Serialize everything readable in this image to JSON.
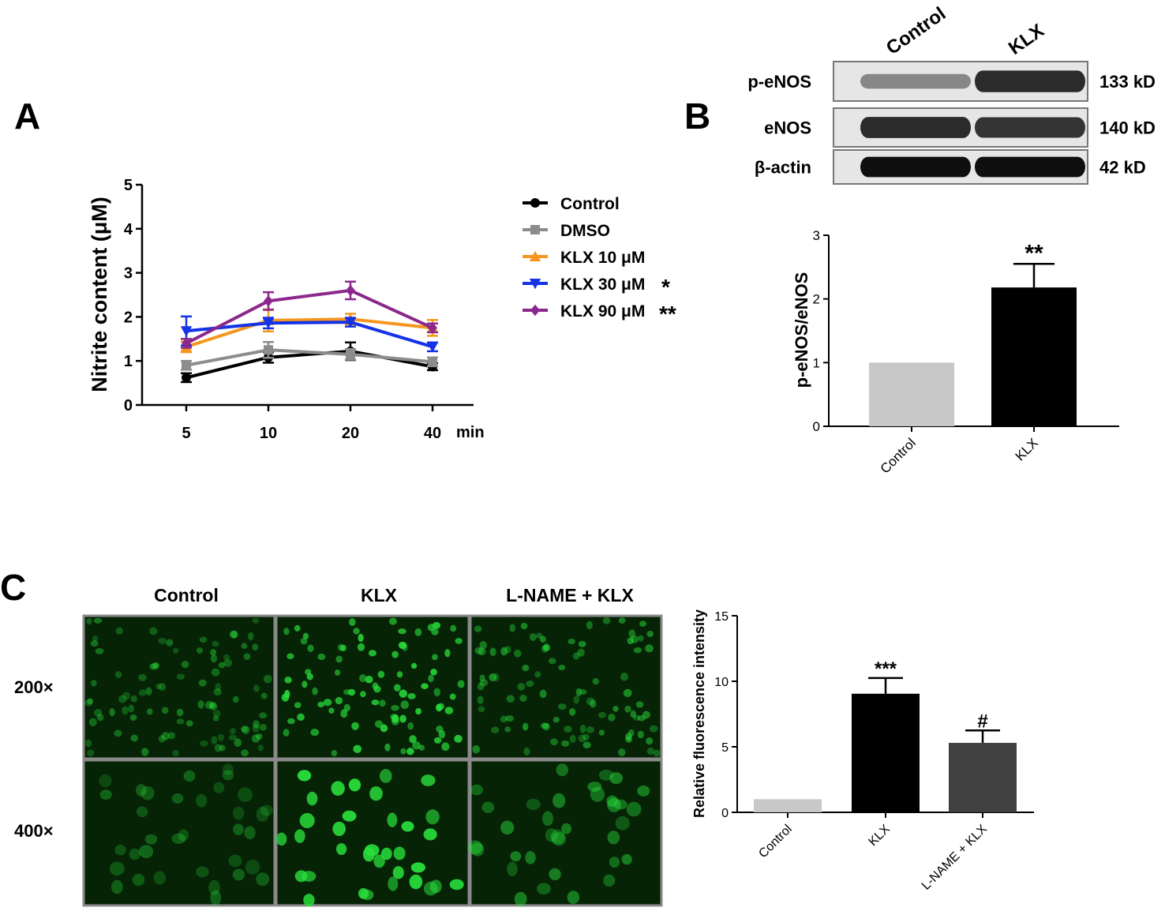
{
  "panels": {
    "a": "A",
    "b": "B",
    "c": "C"
  },
  "blot": {
    "lane_labels": [
      "Control",
      "KLX"
    ],
    "rows": [
      {
        "protein": "p-eNOS",
        "size": "133 kD",
        "intensity": [
          0.35,
          0.85
        ]
      },
      {
        "protein": "eNOS",
        "size": "140 kD",
        "intensity": [
          0.85,
          0.8
        ]
      },
      {
        "protein": "β-actin",
        "size": "42 kD",
        "intensity": [
          1.0,
          1.0
        ]
      }
    ]
  },
  "micrographs": {
    "column_labels": [
      "Control",
      "KLX",
      "L-NAME + KLX"
    ],
    "row_labels": [
      "200×",
      "400×"
    ],
    "brightness": [
      [
        0.45,
        0.9,
        0.55
      ],
      [
        0.35,
        0.95,
        0.5
      ]
    ],
    "colors": {
      "cell": "#29e03c",
      "background": "#062306"
    }
  },
  "chart_data": [
    {
      "type": "line",
      "xlabel": "min",
      "ylabel": "Nitrite content (μM)",
      "x": [
        5,
        10,
        20,
        40
      ],
      "ylim": [
        0,
        5
      ],
      "yticks": [
        0,
        1,
        2,
        3,
        4,
        5
      ],
      "grid": false,
      "legend_position": "right",
      "series": [
        {
          "name": "Control",
          "marker": "circle",
          "color": "#000000",
          "annotation": "",
          "values": [
            0.62,
            1.08,
            1.22,
            0.87
          ],
          "errors": [
            0.1,
            0.12,
            0.2,
            0.08
          ]
        },
        {
          "name": "DMSO",
          "marker": "square",
          "color": "#8c8c8c",
          "annotation": "",
          "values": [
            0.9,
            1.25,
            1.15,
            0.98
          ],
          "errors": [
            0.1,
            0.18,
            0.12,
            0.1
          ]
        },
        {
          "name": "KLX 10 μM",
          "marker": "triangle-up",
          "color": "#f5961e",
          "annotation": "",
          "values": [
            1.32,
            1.92,
            1.95,
            1.75
          ],
          "errors": [
            0.12,
            0.25,
            0.12,
            0.18
          ]
        },
        {
          "name": "KLX 30 μM",
          "marker": "triangle-down",
          "color": "#1432e6",
          "annotation": "*",
          "values": [
            1.68,
            1.86,
            1.88,
            1.32
          ],
          "errors": [
            0.33,
            0.12,
            0.1,
            0.1
          ]
        },
        {
          "name": "KLX 90 μM",
          "marker": "diamond",
          "color": "#8c288c",
          "annotation": "**",
          "values": [
            1.4,
            2.36,
            2.6,
            1.75
          ],
          "errors": [
            0.1,
            0.2,
            0.2,
            0.1
          ]
        }
      ]
    },
    {
      "type": "bar",
      "ylabel": "p-eNOS/eNOS",
      "categories": [
        "Control",
        "KLX"
      ],
      "values": [
        1.0,
        2.18
      ],
      "errors": [
        0,
        0.37
      ],
      "annotations": [
        "",
        "**"
      ],
      "colors": [
        "#c8c8c8",
        "#000000"
      ],
      "ylim": [
        0,
        3
      ],
      "yticks": [
        0,
        1,
        2,
        3
      ]
    },
    {
      "type": "bar",
      "ylabel": "Relative fluorescence intensity",
      "categories": [
        "Control",
        "KLX",
        "L-NAME + KLX"
      ],
      "values": [
        1.0,
        9.05,
        5.3
      ],
      "errors": [
        0,
        1.2,
        0.95
      ],
      "annotations": [
        "",
        "***",
        "#"
      ],
      "colors": [
        "#c8c8c8",
        "#000000",
        "#404040"
      ],
      "ylim": [
        0,
        15
      ],
      "yticks": [
        0,
        5,
        10,
        15
      ]
    }
  ]
}
